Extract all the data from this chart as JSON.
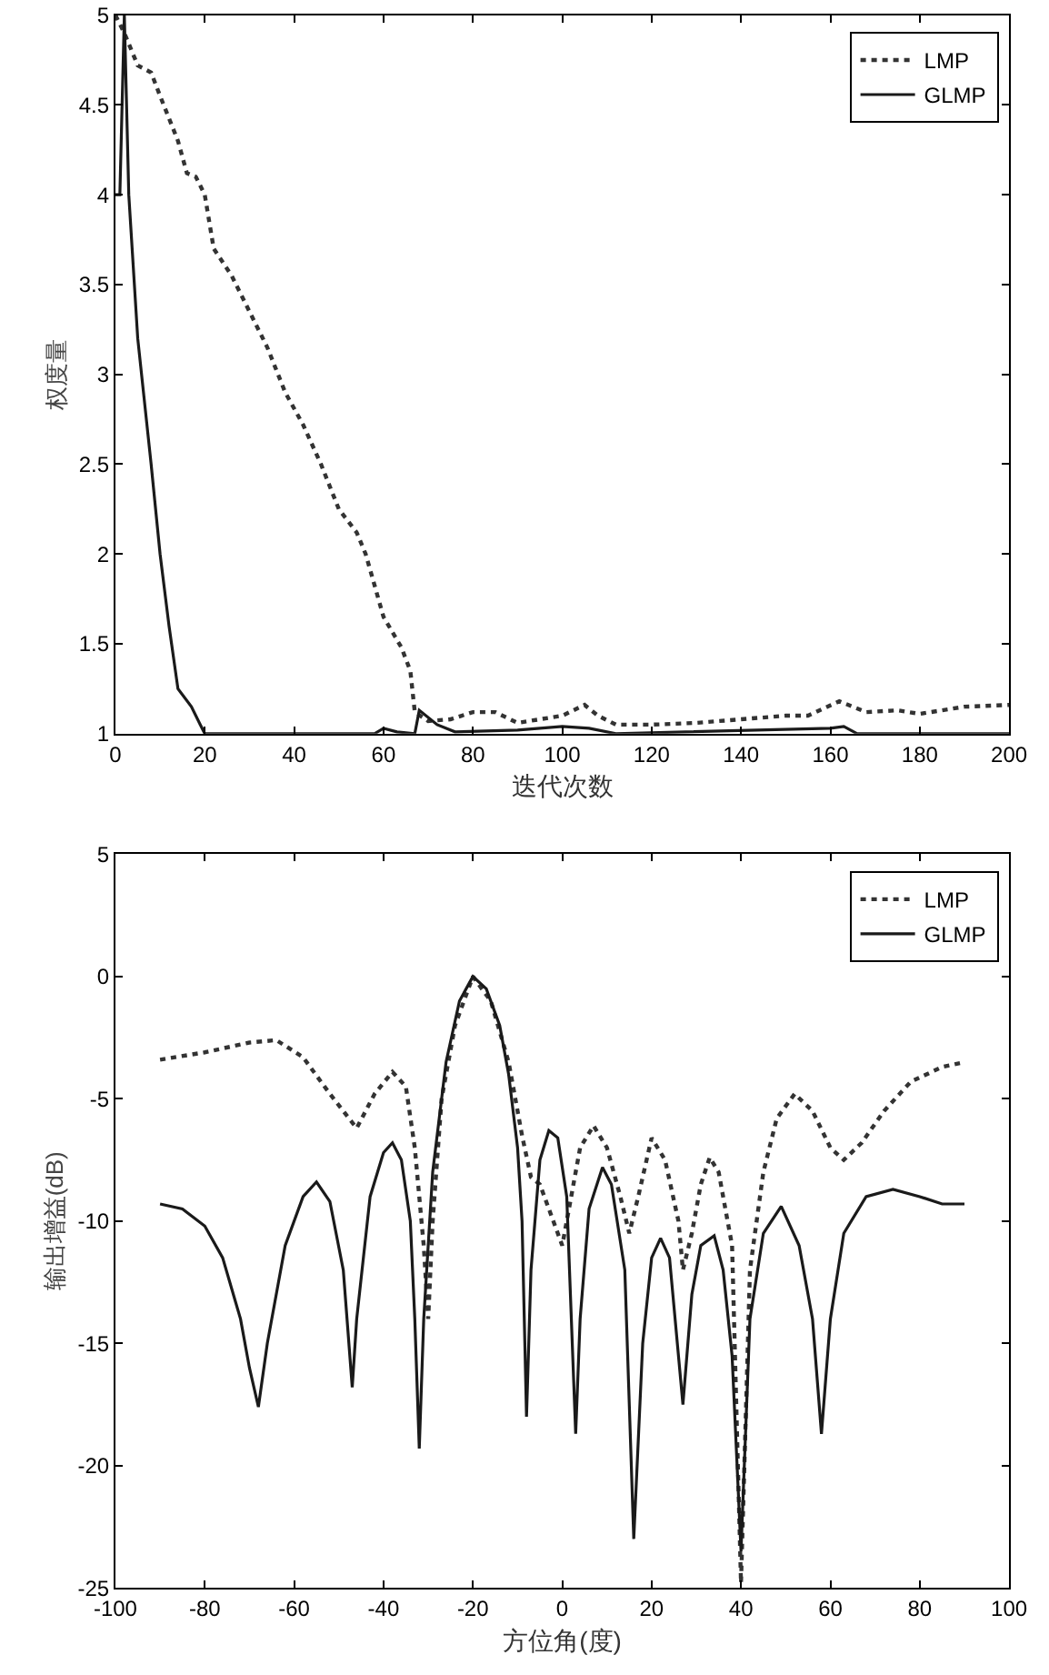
{
  "chart_data": [
    {
      "type": "line",
      "xlabel": "迭代次数",
      "ylabel": "权度量",
      "xlim": [
        0,
        200
      ],
      "ylim": [
        1,
        5
      ],
      "xticks": [
        0,
        20,
        40,
        60,
        80,
        100,
        120,
        140,
        160,
        180,
        200
      ],
      "yticks": [
        1,
        1.5,
        2,
        2.5,
        3,
        3.5,
        4,
        4.5,
        5
      ],
      "legend": "top right",
      "series": [
        {
          "name": "LMP",
          "color": "#333333",
          "line_style": "dotted",
          "x": [
            0,
            2,
            5,
            8,
            10,
            14,
            16,
            18,
            20,
            22,
            26,
            30,
            34,
            38,
            42,
            46,
            50,
            54,
            56,
            60,
            64,
            66,
            67,
            70,
            75,
            80,
            85,
            90,
            95,
            100,
            105,
            108,
            112,
            120,
            130,
            140,
            150,
            155,
            162,
            168,
            175,
            180,
            190,
            200
          ],
          "values": [
            5,
            4.9,
            4.72,
            4.68,
            4.55,
            4.3,
            4.12,
            4.1,
            4.0,
            3.7,
            3.55,
            3.35,
            3.15,
            2.9,
            2.72,
            2.5,
            2.25,
            2.12,
            2.0,
            1.65,
            1.48,
            1.35,
            1.12,
            1.07,
            1.08,
            1.12,
            1.12,
            1.06,
            1.08,
            1.1,
            1.16,
            1.1,
            1.05,
            1.05,
            1.06,
            1.08,
            1.1,
            1.1,
            1.18,
            1.12,
            1.13,
            1.11,
            1.15,
            1.16
          ]
        },
        {
          "name": "GLMP",
          "color": "#1a1a1a",
          "line_style": "solid",
          "x": [
            0,
            1,
            2,
            3,
            5,
            8,
            10,
            12,
            14,
            17,
            19,
            20,
            40,
            58,
            60,
            63,
            67,
            68,
            72,
            76,
            90,
            100,
            106,
            112,
            160,
            163,
            166,
            200
          ],
          "values": [
            4.0,
            4.0,
            5,
            4.0,
            3.2,
            2.5,
            2.0,
            1.6,
            1.25,
            1.15,
            1.05,
            1.0,
            1.0,
            1.0,
            1.03,
            1.01,
            1.0,
            1.13,
            1.05,
            1.01,
            1.02,
            1.04,
            1.03,
            1.0,
            1.03,
            1.04,
            1.0,
            1.0
          ]
        }
      ]
    },
    {
      "type": "line",
      "xlabel": "方位角(度)",
      "ylabel": "输出增益(dB)",
      "xlim": [
        -100,
        100
      ],
      "ylim": [
        -25,
        5
      ],
      "xticks": [
        -100,
        -80,
        -60,
        -40,
        -20,
        0,
        20,
        40,
        60,
        80,
        100
      ],
      "yticks": [
        -25,
        -20,
        -15,
        -10,
        -5,
        0,
        5
      ],
      "legend": "top right",
      "series": [
        {
          "name": "LMP",
          "color": "#333333",
          "line_style": "dotted",
          "x": [
            -90,
            -80,
            -70,
            -64,
            -58,
            -52,
            -46,
            -42,
            -38,
            -35,
            -33,
            -31,
            -30,
            -29,
            -27,
            -24,
            -20,
            -16,
            -12,
            -9,
            -7,
            -5,
            -3,
            0,
            2,
            4,
            7,
            10,
            13,
            15,
            17,
            20,
            23,
            26,
            27,
            29,
            31,
            33,
            35,
            38,
            40,
            42,
            45,
            48,
            52,
            56,
            60,
            63,
            67,
            72,
            78,
            85,
            90
          ],
          "values": [
            -3.4,
            -3.1,
            -2.7,
            -2.6,
            -3.3,
            -4.8,
            -6.2,
            -4.8,
            -3.9,
            -4.5,
            -7,
            -11,
            -14,
            -10,
            -5,
            -2,
            0,
            -1,
            -3.5,
            -6.5,
            -8.2,
            -8.5,
            -9.5,
            -11,
            -9,
            -7,
            -6.1,
            -7,
            -9,
            -10.5,
            -9,
            -6.6,
            -7.5,
            -10,
            -12,
            -10.5,
            -8.5,
            -7.4,
            -8,
            -11,
            -24.8,
            -12,
            -8,
            -5.8,
            -4.8,
            -5.5,
            -7,
            -7.5,
            -6.8,
            -5.5,
            -4.3,
            -3.7,
            -3.5
          ]
        },
        {
          "name": "GLMP",
          "color": "#1a1a1a",
          "line_style": "solid",
          "x": [
            -90,
            -85,
            -80,
            -76,
            -72,
            -70,
            -68,
            -66,
            -62,
            -58,
            -55,
            -52,
            -49,
            -47,
            -46,
            -43,
            -40,
            -38,
            -36,
            -34,
            -33,
            -32,
            -31,
            -29,
            -26,
            -23,
            -20,
            -17,
            -14,
            -12,
            -10,
            -9,
            -8,
            -7,
            -5,
            -3,
            -1,
            1,
            3,
            4,
            6,
            9,
            11,
            14,
            16,
            18,
            20,
            22,
            24,
            27,
            29,
            31,
            34,
            36,
            38,
            40,
            42,
            45,
            49,
            53,
            56,
            58,
            60,
            63,
            68,
            74,
            80,
            85,
            90
          ],
          "values": [
            -9.3,
            -9.5,
            -10.2,
            -11.5,
            -14,
            -16,
            -17.6,
            -15,
            -11,
            -9,
            -8.4,
            -9.2,
            -12,
            -16.8,
            -14,
            -9,
            -7.2,
            -6.8,
            -7.5,
            -10,
            -14,
            -19.3,
            -14,
            -8,
            -3.5,
            -1,
            0,
            -0.5,
            -2,
            -4,
            -7,
            -10,
            -18,
            -12,
            -7.5,
            -6.3,
            -6.6,
            -9,
            -18.7,
            -14,
            -9.5,
            -7.8,
            -8.5,
            -12,
            -23,
            -15,
            -11.5,
            -10.7,
            -11.5,
            -17.5,
            -13,
            -11,
            -10.6,
            -12,
            -15.5,
            -23.5,
            -14,
            -10.5,
            -9.4,
            -11,
            -14,
            -18.7,
            -14,
            -10.5,
            -9,
            -8.7,
            -9,
            -9.3,
            -9.3
          ]
        }
      ]
    }
  ]
}
